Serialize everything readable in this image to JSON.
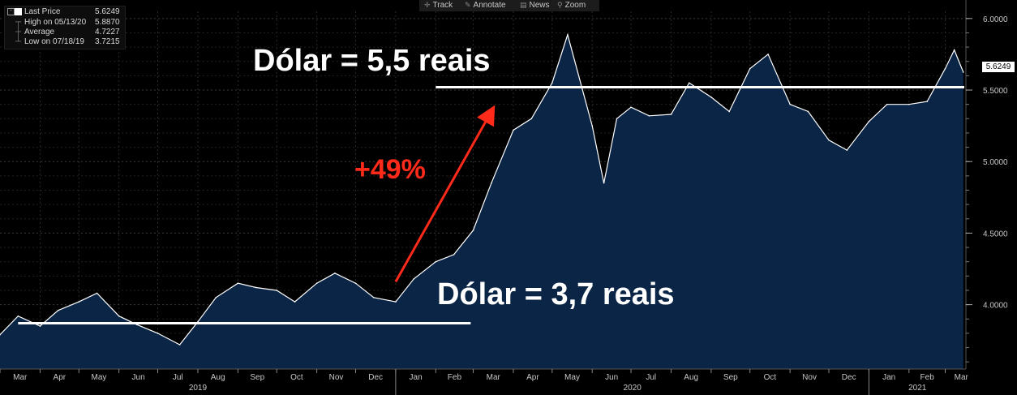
{
  "toolbar": {
    "track": "Track",
    "annotate": "Annotate",
    "news": "News",
    "zoom": "Zoom"
  },
  "legend": {
    "last_price_label": "Last Price",
    "last_price_value": "5.6249",
    "high_label": "High on 05/13/20",
    "high_value": "5.8870",
    "average_label": "Average",
    "average_value": "4.7227",
    "low_label": "Low on 07/18/19",
    "low_value": "3.7215"
  },
  "price_tag": "5.6249",
  "annotations": {
    "upper": "Dólar = 5,5 reais",
    "lower": "Dólar = 3,7 reais",
    "change": "+49%"
  },
  "colors": {
    "background": "#000000",
    "area_fill": "#0b2546",
    "line": "#ffffff",
    "arrow": "#ff2a1a"
  },
  "chart_data": {
    "type": "area",
    "series": [
      {
        "name": "Last Price",
        "x": [
          "2019-03-01",
          "2019-03-15",
          "2019-04-01",
          "2019-04-15",
          "2019-05-01",
          "2019-05-15",
          "2019-06-01",
          "2019-06-15",
          "2019-07-01",
          "2019-07-18",
          "2019-08-01",
          "2019-08-15",
          "2019-09-01",
          "2019-09-15",
          "2019-10-01",
          "2019-10-15",
          "2019-11-01",
          "2019-11-15",
          "2019-12-01",
          "2019-12-15",
          "2020-01-01",
          "2020-01-15",
          "2020-02-01",
          "2020-02-15",
          "2020-03-01",
          "2020-03-15",
          "2020-04-01",
          "2020-04-15",
          "2020-05-01",
          "2020-05-13",
          "2020-06-01",
          "2020-06-10",
          "2020-06-20",
          "2020-07-01",
          "2020-07-15",
          "2020-08-01",
          "2020-08-15",
          "2020-09-01",
          "2020-09-15",
          "2020-10-01",
          "2020-10-15",
          "2020-11-01",
          "2020-11-15",
          "2020-12-01",
          "2020-12-15",
          "2021-01-01",
          "2021-01-15",
          "2021-02-01",
          "2021-02-15",
          "2021-03-01",
          "2021-03-08",
          "2021-03-15"
        ],
        "values": [
          3.79,
          3.92,
          3.85,
          3.96,
          4.02,
          4.08,
          3.92,
          3.86,
          3.8,
          3.72,
          3.88,
          4.05,
          4.15,
          4.12,
          4.1,
          4.02,
          4.15,
          4.22,
          4.15,
          4.05,
          4.02,
          4.18,
          4.3,
          4.35,
          4.52,
          4.85,
          5.22,
          5.3,
          5.55,
          5.887,
          5.25,
          4.85,
          5.3,
          5.38,
          5.32,
          5.33,
          5.55,
          5.45,
          5.35,
          5.65,
          5.75,
          5.4,
          5.35,
          5.15,
          5.08,
          5.28,
          5.4,
          5.4,
          5.42,
          5.65,
          5.78,
          5.6249
        ]
      }
    ],
    "x_tick_labels": [
      "Mar",
      "Apr",
      "May",
      "Jun",
      "Jul",
      "Aug",
      "Sep",
      "Oct",
      "Nov",
      "Dec",
      "Jan",
      "Feb",
      "Mar",
      "Apr",
      "May",
      "Jun",
      "Jul",
      "Aug",
      "Sep",
      "Oct",
      "Nov",
      "Dec",
      "Jan",
      "Feb",
      "Mar"
    ],
    "year_labels": [
      "2019",
      "2020",
      "2021"
    ],
    "y_tick_labels": [
      "4.0000",
      "4.5000",
      "5.0000",
      "5.5000",
      "6.0000"
    ],
    "ylim": [
      3.55,
      6.05
    ],
    "xlim": [
      "2019-03-01",
      "2021-03-17"
    ],
    "reference_lines": [
      {
        "label": "Dólar = 3,7 reais",
        "y": 3.87,
        "x_start": "2019-03-15",
        "x_end": "2020-02-28"
      },
      {
        "label": "Dólar = 5,5 reais",
        "y": 5.52,
        "x_start": "2020-02-01",
        "x_end": "2021-03-17"
      }
    ],
    "arrow": {
      "label": "+49%",
      "from": [
        "2020-01-01",
        4.16
      ],
      "to": [
        "2020-03-15",
        5.35
      ]
    },
    "legend_position": "top-left",
    "grid": true
  }
}
